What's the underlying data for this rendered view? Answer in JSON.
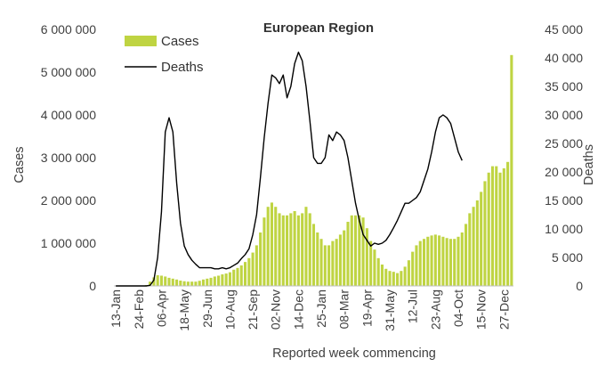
{
  "chart_data": {
    "type": "bar+line",
    "title": "European Region",
    "xlabel": "Reported week commencing",
    "ylabel_left": "Cases",
    "ylabel_right": "Deaths",
    "ylim_left": [
      0,
      6000000
    ],
    "ylim_right": [
      0,
      45000
    ],
    "left_ticks": [
      0,
      1000000,
      2000000,
      3000000,
      4000000,
      5000000,
      6000000
    ],
    "left_tick_labels": [
      "0",
      "1 000 000",
      "2 000 000",
      "3 000 000",
      "4 000 000",
      "5 000 000",
      "6 000 000"
    ],
    "right_ticks": [
      0,
      5000,
      10000,
      15000,
      20000,
      25000,
      30000,
      35000,
      40000,
      45000
    ],
    "right_tick_labels": [
      "0",
      "5 000",
      "10 000",
      "15 000",
      "20 000",
      "25 000",
      "30 000",
      "35 000",
      "40 000",
      "45 000"
    ],
    "x_tick_labels": [
      "13-Jan",
      "24-Feb",
      "06-Apr",
      "18-May",
      "29-Jun",
      "10-Aug",
      "21-Sep",
      "02-Nov",
      "14-Dec",
      "25-Jan",
      "08-Mar",
      "19-Apr",
      "31-May",
      "12-Jul",
      "23-Aug",
      "04-Oct",
      "15-Nov",
      "27-Dec"
    ],
    "x_tick_every": 6,
    "grid": false,
    "legend_position": "top-left",
    "series": [
      {
        "name": "Cases",
        "kind": "bar",
        "color": "#bfd442",
        "values": [
          0,
          0,
          0,
          0,
          0,
          0,
          0,
          2000,
          20000,
          100000,
          200000,
          250000,
          240000,
          220000,
          190000,
          170000,
          150000,
          125000,
          110000,
          100000,
          100000,
          100000,
          120000,
          150000,
          170000,
          190000,
          220000,
          240000,
          270000,
          290000,
          320000,
          380000,
          420000,
          480000,
          560000,
          650000,
          780000,
          950000,
          1250000,
          1600000,
          1850000,
          1950000,
          1850000,
          1700000,
          1650000,
          1650000,
          1700000,
          1750000,
          1650000,
          1700000,
          1850000,
          1700000,
          1450000,
          1250000,
          1100000,
          950000,
          950000,
          1050000,
          1100000,
          1200000,
          1300000,
          1500000,
          1650000,
          1650000,
          1650000,
          1600000,
          1350000,
          1050000,
          850000,
          650000,
          500000,
          400000,
          350000,
          330000,
          300000,
          350000,
          450000,
          600000,
          800000,
          950000,
          1050000,
          1100000,
          1150000,
          1180000,
          1200000,
          1180000,
          1150000,
          1120000,
          1100000,
          1100000,
          1150000,
          1250000,
          1450000,
          1700000,
          1850000,
          2000000,
          2200000,
          2450000,
          2650000,
          2800000,
          2800000,
          2650000,
          2750000,
          2900000,
          5400000
        ]
      },
      {
        "name": "Deaths",
        "kind": "line",
        "color": "#000000",
        "values": [
          0,
          0,
          0,
          0,
          0,
          0,
          0,
          0,
          0,
          100,
          1000,
          5000,
          13000,
          27000,
          29500,
          27000,
          18000,
          11000,
          7000,
          5500,
          4500,
          3800,
          3200,
          3200,
          3200,
          3200,
          3000,
          3000,
          3200,
          3000,
          3200,
          3600,
          4000,
          4800,
          5500,
          6500,
          9000,
          12500,
          19000,
          26000,
          32000,
          37000,
          36500,
          35500,
          37000,
          33000,
          35000,
          39000,
          41000,
          39500,
          35000,
          29000,
          22500,
          21500,
          21500,
          22500,
          26500,
          25500,
          27000,
          26500,
          25500,
          22500,
          18500,
          14500,
          11500,
          9000,
          8000,
          7000,
          7500,
          7300,
          7500,
          8000,
          9000,
          10200,
          11500,
          13000,
          14500,
          14500,
          15000,
          15500,
          16500,
          18500,
          20500,
          23500,
          27000,
          29500,
          30000,
          29500,
          28500,
          26000,
          23500,
          22000
        ]
      }
    ]
  }
}
